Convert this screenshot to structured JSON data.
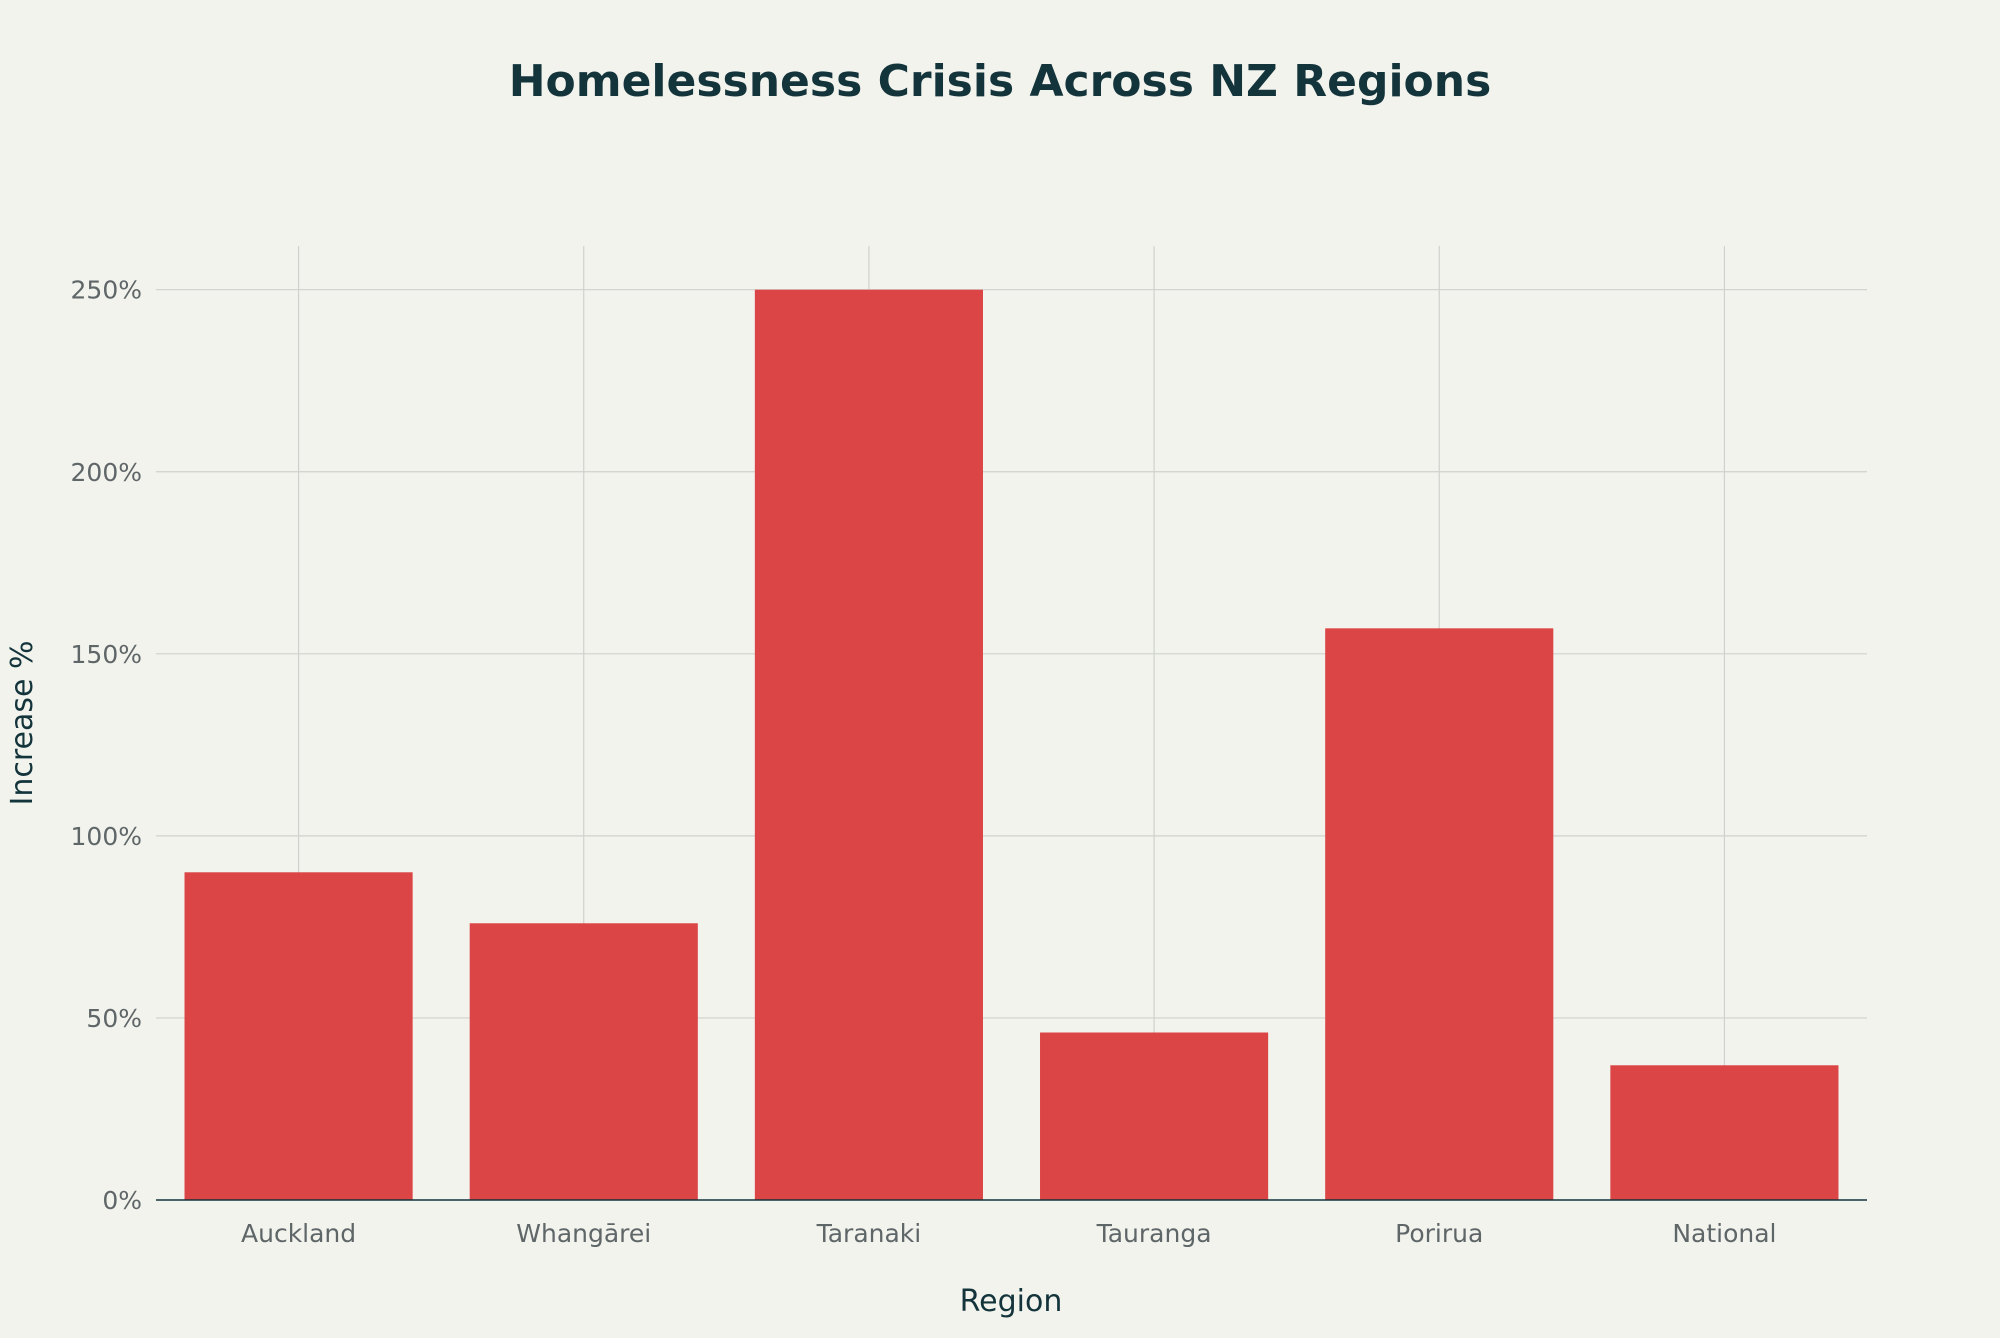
{
  "chart_data": {
    "type": "bar",
    "title": "Homelessness Crisis Across NZ Regions",
    "xlabel": "Region",
    "ylabel": "Increase %",
    "categories": [
      "Auckland",
      "Whangārei",
      "Taranaki",
      "Tauranga",
      "Porirua",
      "National"
    ],
    "values": [
      90,
      76,
      250,
      46,
      157,
      37
    ],
    "ylim": [
      0,
      262
    ],
    "yticks": [
      0,
      50,
      100,
      150,
      200,
      250
    ],
    "ytick_labels": [
      "0%",
      "50%",
      "100%",
      "150%",
      "200%",
      "250%"
    ],
    "grid": true,
    "legend": "none",
    "bar_color": "#db4545",
    "axis_color": "#13343b",
    "grid_color": "#cfd1cc",
    "background_color": "#f3f3ee"
  }
}
